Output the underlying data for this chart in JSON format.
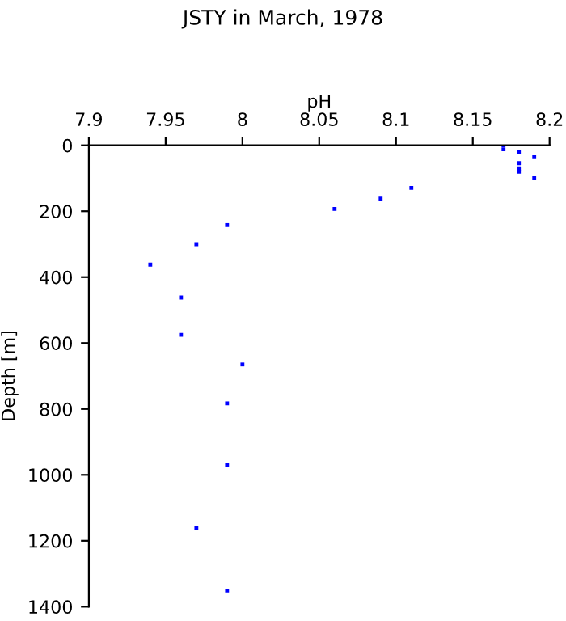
{
  "chart_data": {
    "type": "scatter",
    "title": "JSTY in March, 1978",
    "xlabel": "pH",
    "ylabel": "Depth [m]",
    "x": [
      8.17,
      8.17,
      8.18,
      8.19,
      8.18,
      8.18,
      8.18,
      8.19,
      8.11,
      8.09,
      8.06,
      7.99,
      7.97,
      7.94,
      7.96,
      7.96,
      8.0,
      7.99,
      7.99,
      7.97,
      7.99
    ],
    "series": [
      {
        "color": "#0000ff",
        "values": [
          0,
          12,
          21,
          36,
          54,
          70,
          80,
          100,
          129,
          162,
          193,
          242,
          300,
          362,
          462,
          575,
          665,
          783,
          969,
          1161,
          1351
        ]
      }
    ],
    "xlim": [
      7.9,
      8.2
    ],
    "xticks": [
      7.9,
      7.95,
      8,
      8.05,
      8.1,
      8.15,
      8.2
    ],
    "ylim": [
      1400,
      0
    ],
    "yticks": [
      0,
      200,
      400,
      600,
      800,
      1000,
      1200,
      1400
    ],
    "marker": "square",
    "grid": false
  }
}
